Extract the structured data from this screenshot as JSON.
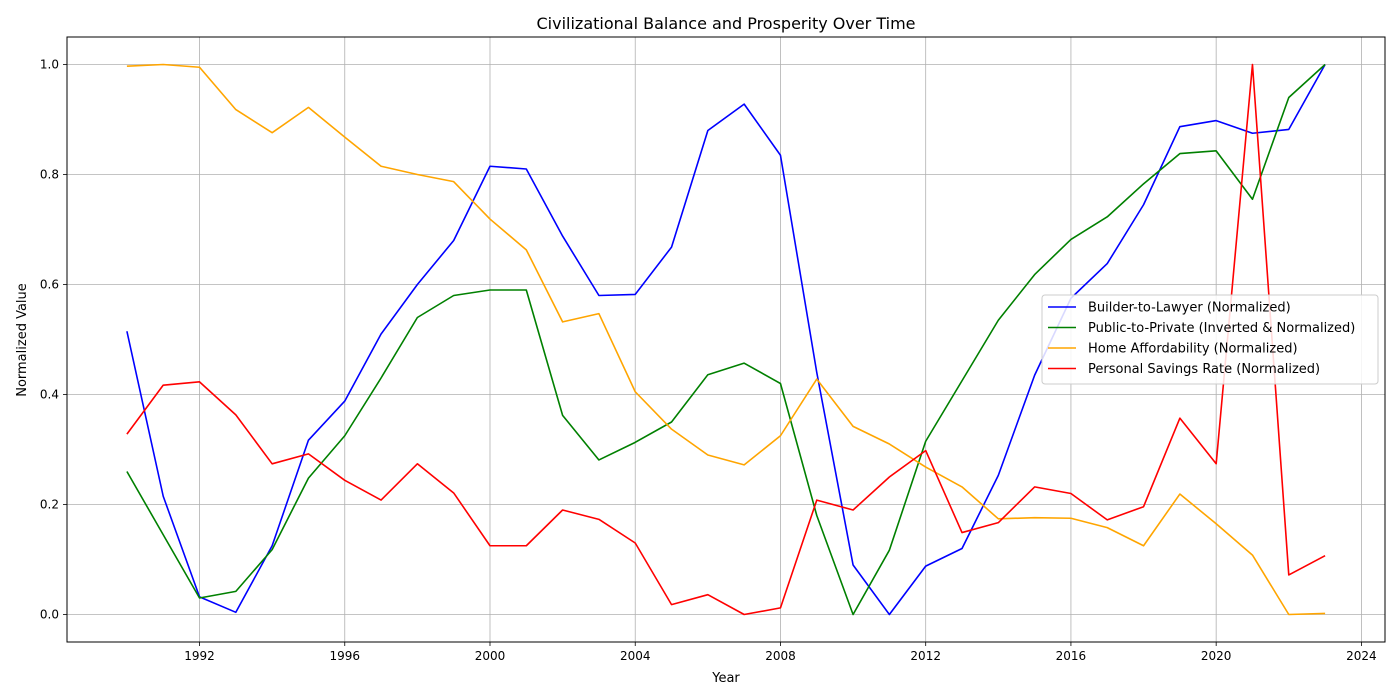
{
  "chart_data": {
    "type": "line",
    "title": "Civilizational Balance and Prosperity Over Time",
    "xlabel": "Year",
    "ylabel": "Normalized Value",
    "xlim": [
      1988.35,
      2024.65
    ],
    "ylim": [
      -0.05,
      1.05
    ],
    "xticks": [
      1992,
      1996,
      2000,
      2004,
      2008,
      2012,
      2016,
      2020,
      2024
    ],
    "yticks": [
      0.0,
      0.2,
      0.4,
      0.6,
      0.8,
      1.0
    ],
    "ytick_labels": [
      "0.0",
      "0.2",
      "0.4",
      "0.6",
      "0.8",
      "1.0"
    ],
    "grid": true,
    "legend_position": "center-right",
    "x": [
      1990,
      1991,
      1992,
      1993,
      1994,
      1995,
      1996,
      1997,
      1998,
      1999,
      2000,
      2001,
      2002,
      2003,
      2004,
      2005,
      2006,
      2007,
      2008,
      2009,
      2010,
      2011,
      2012,
      2013,
      2014,
      2015,
      2016,
      2017,
      2018,
      2019,
      2020,
      2021,
      2022,
      2023
    ],
    "series": [
      {
        "name": "Builder-to-Lawyer (Normalized)",
        "color": "#0000ff",
        "values": [
          0.515,
          0.215,
          0.032,
          0.004,
          0.125,
          0.317,
          0.388,
          0.51,
          0.6,
          0.68,
          0.815,
          0.81,
          0.688,
          0.58,
          0.582,
          0.668,
          0.88,
          0.928,
          0.835,
          0.44,
          0.09,
          0.0,
          0.088,
          0.12,
          0.253,
          0.435,
          0.575,
          0.638,
          0.745,
          0.887,
          0.898,
          0.875,
          0.882,
          1.0
        ]
      },
      {
        "name": "Public-to-Private (Inverted & Normalized)",
        "color": "#008000",
        "values": [
          0.26,
          0.145,
          0.03,
          0.042,
          0.118,
          0.248,
          0.325,
          0.43,
          0.54,
          0.58,
          0.59,
          0.59,
          0.362,
          0.281,
          0.313,
          0.35,
          0.436,
          0.457,
          0.42,
          0.18,
          0.0,
          0.117,
          0.315,
          0.425,
          0.535,
          0.618,
          0.682,
          0.723,
          0.783,
          0.838,
          0.843,
          0.755,
          0.94,
          1.0
        ]
      },
      {
        "name": "Home Affordability (Normalized)",
        "color": "#ffa500",
        "values": [
          0.997,
          1.0,
          0.995,
          0.918,
          0.876,
          0.922,
          0.868,
          0.815,
          0.8,
          0.787,
          0.719,
          0.663,
          0.532,
          0.547,
          0.405,
          0.337,
          0.29,
          0.272,
          0.325,
          0.428,
          0.342,
          0.31,
          0.268,
          0.232,
          0.174,
          0.176,
          0.175,
          0.158,
          0.125,
          0.219,
          0.165,
          0.108,
          0.0,
          0.002
        ]
      },
      {
        "name": "Personal Savings Rate (Normalized)",
        "color": "#ff0000",
        "values": [
          0.328,
          0.417,
          0.423,
          0.363,
          0.274,
          0.292,
          0.244,
          0.208,
          0.274,
          0.221,
          0.125,
          0.125,
          0.19,
          0.173,
          0.13,
          0.018,
          0.036,
          0.0,
          0.012,
          0.208,
          0.19,
          0.25,
          0.298,
          0.149,
          0.167,
          0.232,
          0.22,
          0.172,
          0.196,
          0.357,
          0.274,
          1.0,
          0.072,
          0.107
        ]
      }
    ]
  }
}
